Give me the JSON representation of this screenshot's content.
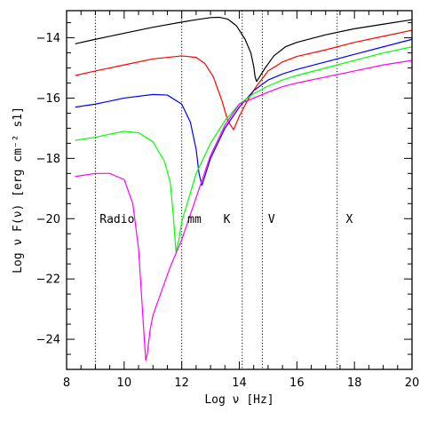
{
  "chart_data": {
    "type": "line",
    "xlabel": "Log ν [Hz]",
    "ylabel": "Log ν F(ν) [erg cm⁻² s1]",
    "xlim": [
      8,
      20
    ],
    "ylim": [
      -25,
      -13.1
    ],
    "x_ticks": [
      8,
      10,
      12,
      14,
      16,
      18,
      20
    ],
    "x_tick_labels": [
      "8",
      "10",
      "12",
      "14",
      "16",
      "18",
      "20"
    ],
    "y_ticks": [
      -24,
      -22,
      -20,
      -18,
      -16,
      -14
    ],
    "y_tick_labels": [
      "−24",
      "−22",
      "−20",
      "−18",
      "−16",
      "−14"
    ],
    "grid": false,
    "bands": [
      {
        "label": "Radio",
        "x": 9.0,
        "label_x": 9.15,
        "label_y": -20.0
      },
      {
        "label": "mm",
        "x": 12.0,
        "label_x": 12.2,
        "label_y": -20.0
      },
      {
        "label": "K",
        "x": 14.1,
        "label_x": 13.45,
        "label_y": -20.0
      },
      {
        "label": "V",
        "x": 14.8,
        "label_x": 15.0,
        "label_y": -20.0
      },
      {
        "label": "X",
        "x": 17.4,
        "label_x": 17.7,
        "label_y": -20.0
      }
    ],
    "series": [
      {
        "color": "#000000",
        "x": [
          8.3,
          9.0,
          10.0,
          11.0,
          12.0,
          12.5,
          13.0,
          13.3,
          13.6,
          13.9,
          14.2,
          14.4,
          14.5,
          14.55,
          14.6,
          14.7,
          14.9,
          15.2,
          15.6,
          16.0,
          17.0,
          18.0,
          19.0,
          20.0
        ],
        "y": [
          -14.2,
          -14.05,
          -13.85,
          -13.65,
          -13.48,
          -13.4,
          -13.33,
          -13.32,
          -13.38,
          -13.6,
          -14.05,
          -14.5,
          -14.95,
          -15.3,
          -15.45,
          -15.3,
          -15.0,
          -14.6,
          -14.3,
          -14.15,
          -13.9,
          -13.7,
          -13.55,
          -13.4
        ]
      },
      {
        "color": "#ff0000",
        "x": [
          8.3,
          9.0,
          10.0,
          11.0,
          12.0,
          12.5,
          12.8,
          13.1,
          13.4,
          13.6,
          13.8,
          14.0,
          14.3,
          14.6,
          15.0,
          15.5,
          16.0,
          17.0,
          18.0,
          19.0,
          20.0
        ],
        "y": [
          -15.25,
          -15.1,
          -14.9,
          -14.7,
          -14.6,
          -14.65,
          -14.85,
          -15.3,
          -16.1,
          -16.75,
          -17.05,
          -16.6,
          -16.05,
          -15.6,
          -15.1,
          -14.8,
          -14.62,
          -14.4,
          -14.15,
          -13.95,
          -13.75
        ]
      },
      {
        "color": "#0000ff",
        "x": [
          8.3,
          9.0,
          10.0,
          11.0,
          11.5,
          12.0,
          12.3,
          12.5,
          12.6,
          12.7,
          12.8,
          13.0,
          13.5,
          14.0,
          14.5,
          15.0,
          15.5,
          16.0,
          17.0,
          18.0,
          19.0,
          20.0
        ],
        "y": [
          -16.3,
          -16.2,
          -16.0,
          -15.88,
          -15.9,
          -16.2,
          -16.8,
          -17.7,
          -18.5,
          -18.9,
          -18.6,
          -18.0,
          -17.0,
          -16.3,
          -15.75,
          -15.4,
          -15.2,
          -15.05,
          -14.8,
          -14.55,
          -14.3,
          -14.05
        ]
      },
      {
        "color": "#00ff00",
        "x": [
          8.3,
          9.0,
          10.0,
          10.5,
          11.0,
          11.4,
          11.6,
          11.7,
          11.8,
          11.9,
          12.0,
          12.5,
          13.0,
          13.5,
          14.0,
          14.5,
          15.0,
          15.5,
          16.0,
          17.0,
          18.0,
          19.0,
          20.0
        ],
        "y": [
          -17.4,
          -17.3,
          -17.1,
          -17.15,
          -17.45,
          -18.1,
          -18.8,
          -19.8,
          -21.1,
          -20.7,
          -20.1,
          -18.5,
          -17.5,
          -16.75,
          -16.2,
          -15.85,
          -15.6,
          -15.4,
          -15.25,
          -15.0,
          -14.75,
          -14.5,
          -14.3
        ]
      },
      {
        "color": "#ff00ff",
        "x": [
          8.3,
          9.0,
          9.5,
          10.0,
          10.3,
          10.5,
          10.6,
          10.7,
          10.75,
          10.8,
          10.9,
          11.0,
          11.3,
          11.6,
          12.0,
          12.5,
          13.0,
          13.5,
          14.0,
          14.5,
          15.0,
          15.5,
          16.0,
          17.0,
          18.0,
          19.0,
          20.0
        ],
        "y": [
          -18.6,
          -18.5,
          -18.5,
          -18.7,
          -19.5,
          -21.0,
          -22.5,
          -24.0,
          -24.7,
          -24.5,
          -23.7,
          -23.2,
          -22.4,
          -21.6,
          -20.7,
          -19.3,
          -17.9,
          -16.9,
          -16.2,
          -16.0,
          -15.8,
          -15.62,
          -15.5,
          -15.3,
          -15.1,
          -14.9,
          -14.75
        ]
      }
    ]
  }
}
